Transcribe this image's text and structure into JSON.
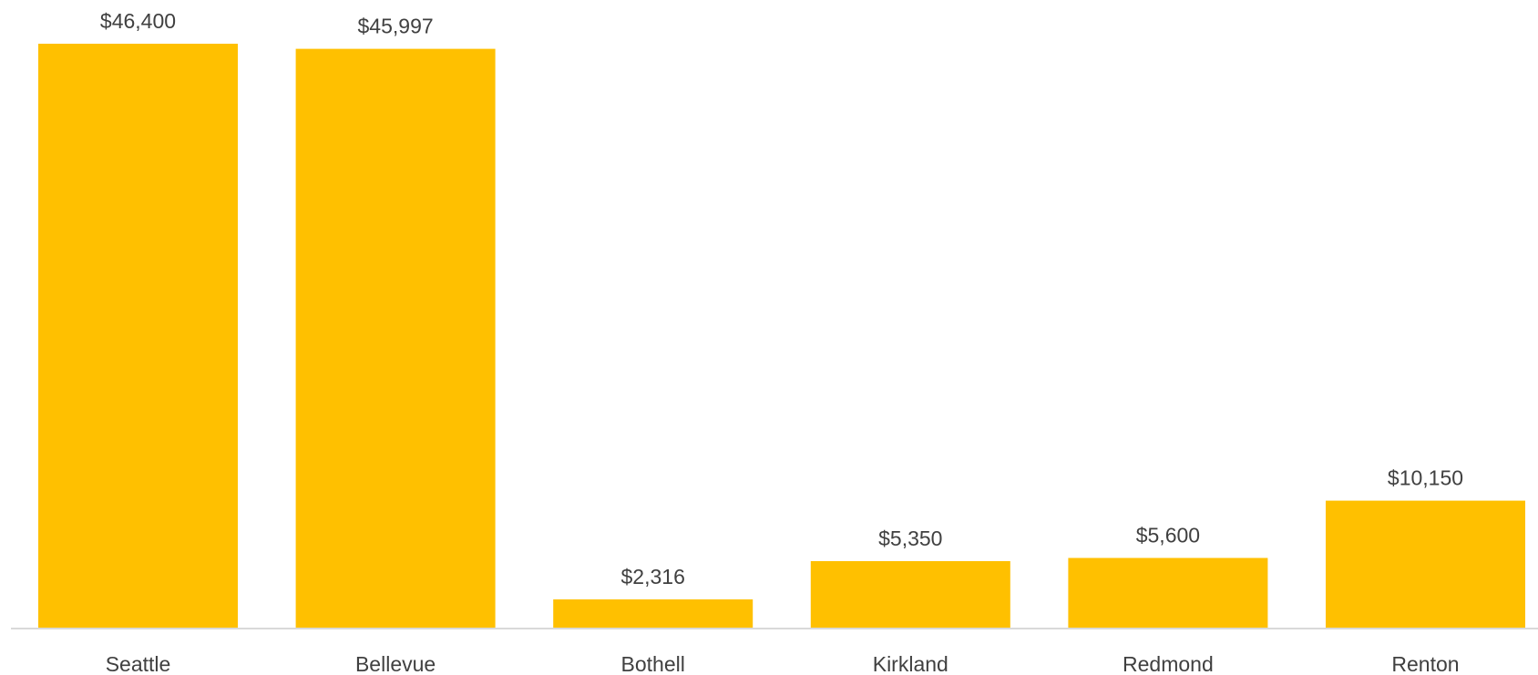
{
  "chart_data": {
    "type": "bar",
    "categories": [
      "Seattle",
      "Bellevue",
      "Bothell",
      "Kirkland",
      "Redmond",
      "Renton"
    ],
    "values": [
      46400,
      45997,
      2316,
      5350,
      5600,
      10150
    ],
    "data_labels": [
      "$46,400",
      "$45,997",
      "$2,316",
      "$5,350",
      "$5,600",
      "$10,150"
    ],
    "title": "",
    "xlabel": "",
    "ylabel": "",
    "ylim": [
      0,
      46400
    ],
    "grid": false,
    "colors": {
      "bar": "#FFC000",
      "axis": "#D9D9D9",
      "text": "#404040"
    }
  }
}
